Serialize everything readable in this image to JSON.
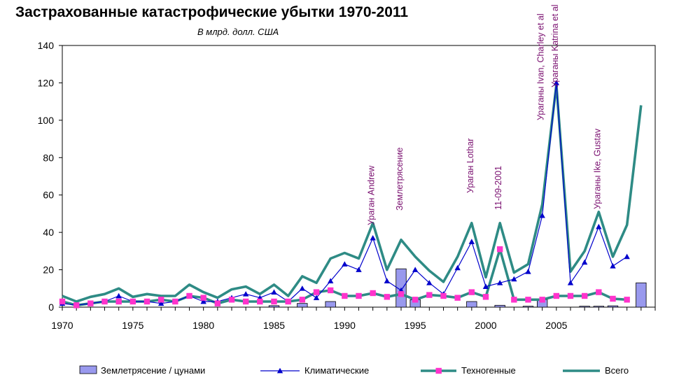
{
  "chart_data": {
    "type": "bar+line",
    "title": "Застрахованные катастрофические убытки 1970-2011",
    "subtitle": "В млрд. долл. США",
    "ylim": [
      0,
      140
    ],
    "yticks": [
      0,
      20,
      40,
      60,
      80,
      100,
      120,
      140
    ],
    "xlim": [
      1970,
      2012
    ],
    "xticks": [
      1970,
      1975,
      1980,
      1985,
      1990,
      1995,
      2000,
      2005
    ],
    "grid": false,
    "legend_position": "bottom",
    "x": [
      1970,
      1971,
      1972,
      1973,
      1974,
      1975,
      1976,
      1977,
      1978,
      1979,
      1980,
      1981,
      1982,
      1983,
      1984,
      1985,
      1986,
      1987,
      1988,
      1989,
      1990,
      1991,
      1992,
      1993,
      1994,
      1995,
      1996,
      1997,
      1998,
      1999,
      2000,
      2001,
      2002,
      2003,
      2004,
      2005,
      2006,
      2007,
      2008,
      2009,
      2010,
      2011
    ],
    "series": [
      {
        "name": "Землетрясение / цунами",
        "kind": "bar",
        "color": "#9999ee",
        "values": [
          0,
          0,
          0,
          0,
          0,
          0,
          0,
          0,
          0,
          0,
          0,
          0,
          0,
          0,
          0,
          0.8,
          0,
          2,
          0,
          3,
          0,
          0,
          0,
          0,
          20.5,
          4,
          0,
          0,
          0,
          3,
          0,
          1,
          0,
          0.5,
          4,
          0,
          0,
          0.5,
          0.5,
          0.7,
          0,
          13
        ]
      },
      {
        "name": "Климатические",
        "kind": "line-marker",
        "color": "#0000cc",
        "values": [
          2,
          1,
          2,
          3,
          6,
          3,
          3,
          2,
          3,
          6,
          3,
          3,
          5,
          7,
          5,
          8,
          3,
          10,
          5,
          14,
          23,
          20,
          37,
          14,
          9,
          20,
          13,
          7,
          21,
          35,
          11,
          13,
          15,
          19,
          49,
          120,
          13,
          24,
          43,
          22,
          27,
          null
        ]
      },
      {
        "name": "Техногенные",
        "kind": "line-marker",
        "color": "#ff33cc",
        "line_color": "#2e8b85",
        "values": [
          3,
          1,
          2,
          3,
          3,
          3,
          3,
          4,
          3,
          6,
          5,
          2,
          4,
          3,
          3,
          3,
          3,
          4,
          8,
          9,
          6,
          6,
          7.5,
          5.5,
          7,
          4,
          6.5,
          6,
          5,
          8,
          5.5,
          31,
          4,
          4,
          4,
          6,
          6,
          6,
          8,
          4.5,
          4,
          null
        ]
      },
      {
        "name": "Всего",
        "kind": "line",
        "color": "#2e8b85",
        "values": [
          6,
          3,
          5.5,
          7,
          10,
          5.5,
          7,
          6,
          6,
          12,
          8,
          5,
          9.5,
          11,
          7,
          12,
          6,
          16.5,
          13,
          26,
          29,
          26,
          45,
          20,
          36,
          27,
          19.5,
          13.5,
          27,
          45,
          16,
          45,
          18.5,
          23,
          55,
          119,
          19,
          30,
          51,
          27,
          44,
          108
        ]
      }
    ],
    "annotations": [
      {
        "x": 1992,
        "text": "Ураган Andrew"
      },
      {
        "x": 1994,
        "text": "Землетрясение"
      },
      {
        "x": 1999,
        "text": "Ураган Lothar"
      },
      {
        "x": 2001,
        "text": "11-09-2001"
      },
      {
        "x": 2004,
        "text": "Ураганы Ivan, Charley et al"
      },
      {
        "x": 2005,
        "text": "Ураганы Katrina et al"
      },
      {
        "x": 2008,
        "text": "Ураганы Ike, Gustav"
      }
    ]
  }
}
